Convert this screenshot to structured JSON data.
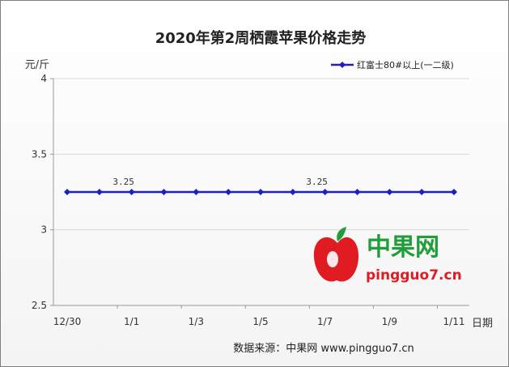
{
  "chart_data": {
    "type": "line",
    "title": "2020年第2周栖霞苹果价格走势",
    "ylabel": "元/斤",
    "xlabel": "日期",
    "ylim": [
      2.5,
      4
    ],
    "yticks": [
      "4",
      "3.5",
      "3",
      "2.5"
    ],
    "x_tick_labels": [
      "12/30",
      "1/1",
      "1/3",
      "1/5",
      "1/7",
      "1/9",
      "1/11"
    ],
    "points": 13,
    "series": [
      {
        "name": "红富士80#以上(一二级)",
        "color": "#1f1fbf",
        "values": [
          3.25,
          3.25,
          3.25,
          3.25,
          3.25,
          3.25,
          3.25,
          3.25,
          3.25,
          3.25,
          3.25,
          3.25,
          3.25
        ]
      }
    ],
    "data_labels": [
      {
        "index": 2,
        "text": "3.25"
      },
      {
        "index": 8,
        "text": "3.25"
      }
    ],
    "grid": "horizontal",
    "legend_position": "top-right"
  },
  "watermark": {
    "brand": "中果网",
    "url": "pingguo7.cn"
  },
  "source": "数据来源：中果网 www.pingguo7.cn"
}
